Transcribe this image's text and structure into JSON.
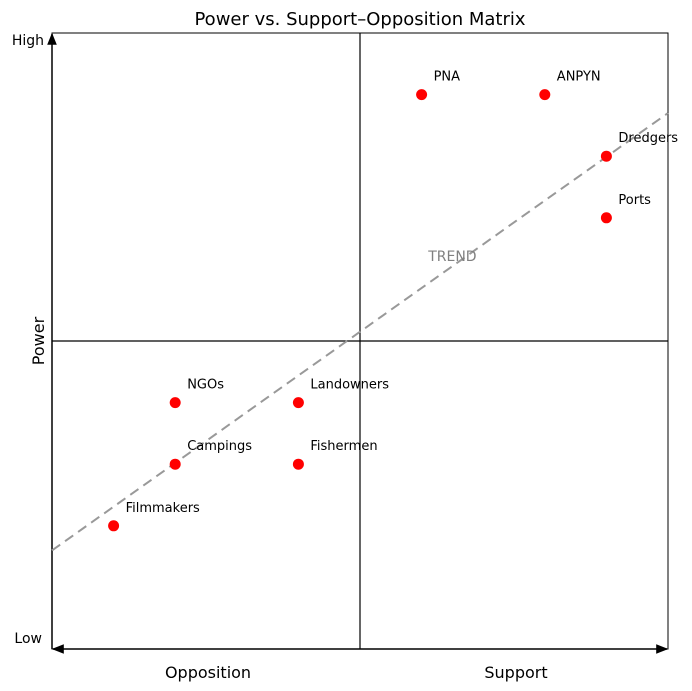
{
  "chart_data": {
    "type": "scatter",
    "title": "Power vs. Support–Opposition Matrix",
    "ylabel": "Power",
    "y_low_label": "Low",
    "y_high_label": "High",
    "x_left_label": "Opposition",
    "x_right_label": "Support",
    "xlim": [
      0,
      10
    ],
    "ylim": [
      0,
      10
    ],
    "grid": false,
    "quadrant_lines": {
      "x": 5,
      "y": 5
    },
    "points": [
      {
        "label": "PNA",
        "x": 6,
        "y": 9
      },
      {
        "label": "ANPYN",
        "x": 8,
        "y": 9
      },
      {
        "label": "Dredgers",
        "x": 9,
        "y": 8
      },
      {
        "label": "Ports",
        "x": 9,
        "y": 7
      },
      {
        "label": "NGOs",
        "x": 2,
        "y": 4
      },
      {
        "label": "Landowners",
        "x": 4,
        "y": 4
      },
      {
        "label": "Campings",
        "x": 2,
        "y": 3
      },
      {
        "label": "Fishermen",
        "x": 4,
        "y": 3
      },
      {
        "label": "Filmmakers",
        "x": 1,
        "y": 2
      }
    ],
    "trend_line": {
      "label": "TREND",
      "label_x": 6.5,
      "label_y": 6.3,
      "x": [
        0,
        10
      ],
      "y": [
        1.6,
        8.7
      ]
    },
    "colors": {
      "points": "#ff0000",
      "trend": "#999999",
      "trend_text": "#808080",
      "axes": "#000000"
    }
  }
}
